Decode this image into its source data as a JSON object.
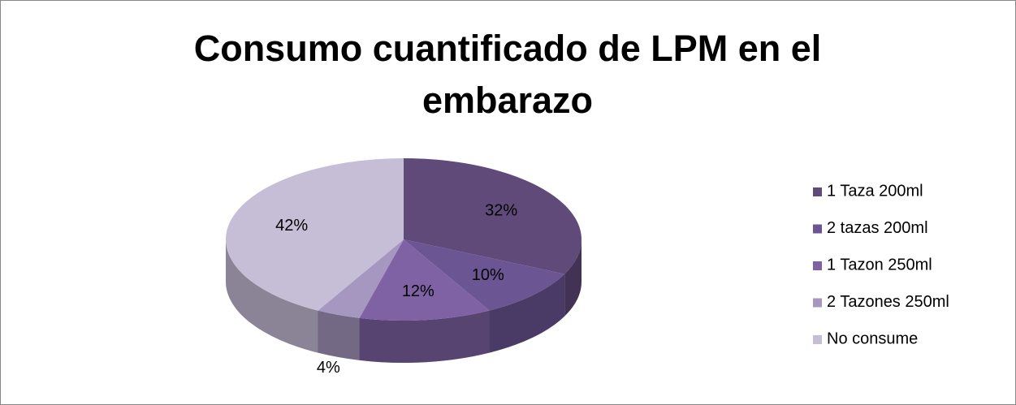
{
  "chart_data": {
    "type": "pie3d",
    "title": "Consumo cuantificado de LPM en el embarazo",
    "categories": [
      "1 Taza 200ml",
      "2 tazas 200ml",
      "1 Tazon 250ml",
      "2 Tazones 250ml",
      "No consume"
    ],
    "values": [
      32,
      10,
      12,
      4,
      42
    ],
    "value_labels": [
      "32%",
      "10%",
      "12%",
      "4%",
      "42%"
    ],
    "colors": [
      "#5f4a7a",
      "#6b5592",
      "#7e62a3",
      "#a597bf",
      "#c6bdd7"
    ],
    "legend": "right"
  }
}
